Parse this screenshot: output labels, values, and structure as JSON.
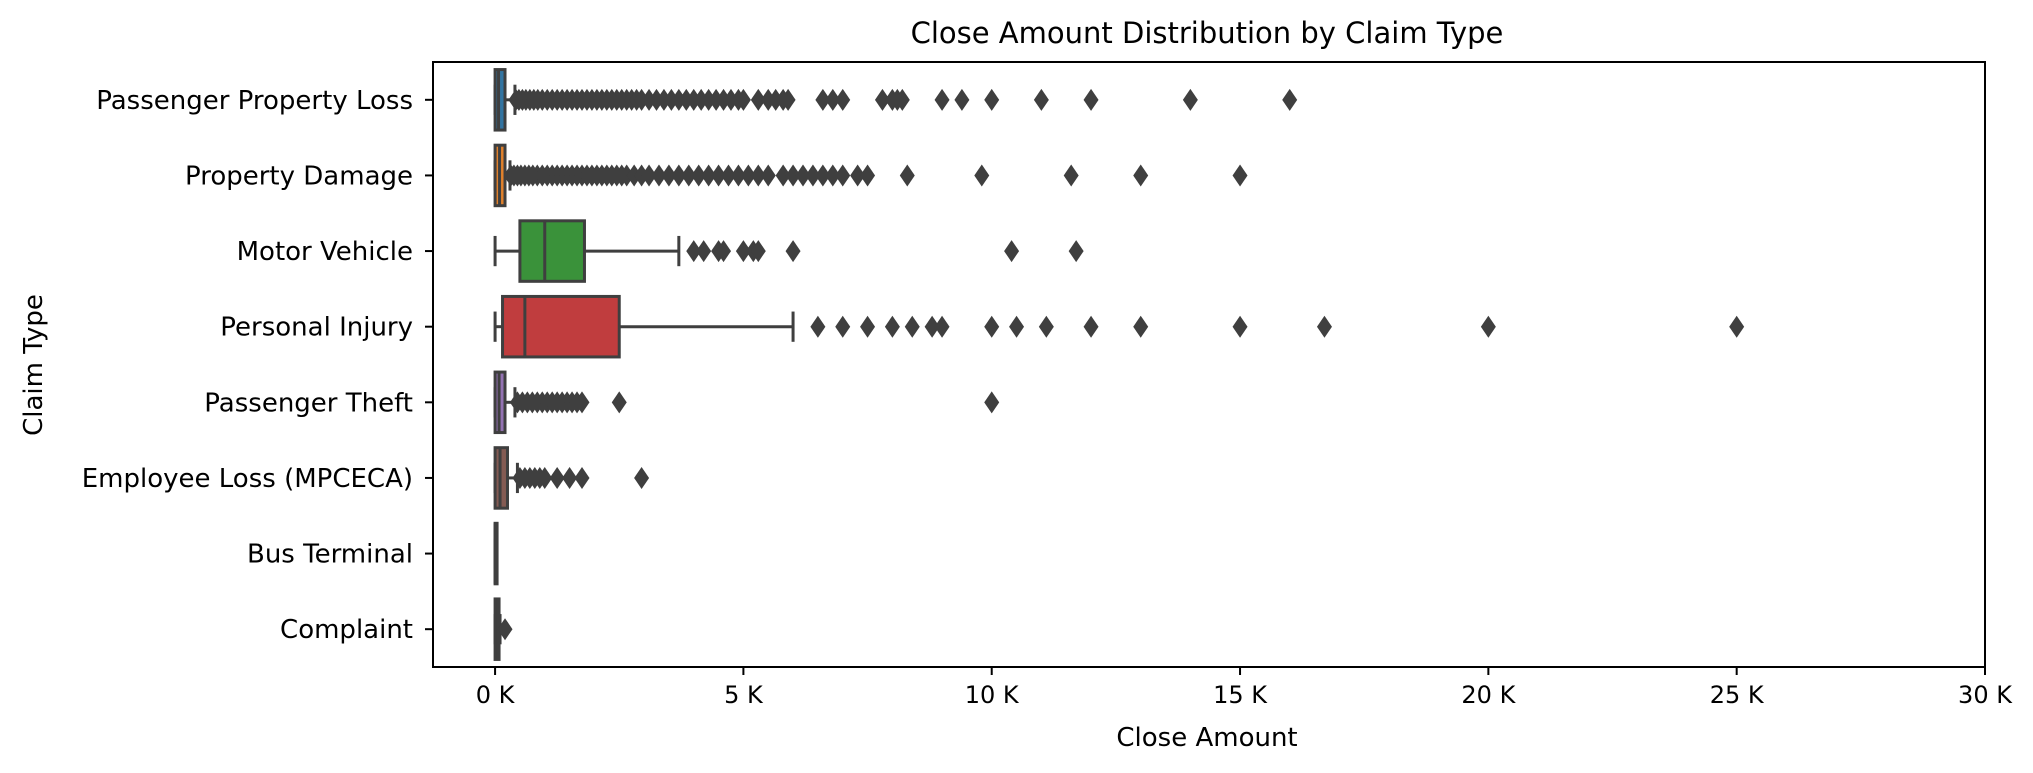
{
  "chart_data": {
    "type": "box",
    "title": "Close Amount Distribution by Claim Type",
    "xlabel": "Close Amount",
    "ylabel": "Claim Type",
    "xlim": [
      -1250,
      30000
    ],
    "xticks": [
      0,
      5000,
      10000,
      15000,
      20000,
      25000,
      30000
    ],
    "xtick_labels": [
      "0 K",
      "5 K",
      "10 K",
      "15 K",
      "20 K",
      "25 K",
      "30 K"
    ],
    "orientation": "horizontal",
    "grid": false,
    "categories": [
      "Passenger Property Loss",
      "Property Damage",
      "Motor Vehicle",
      "Personal Injury",
      "Passenger Theft",
      "Employee Loss (MPCECA)",
      "Bus Terminal",
      "Complaint"
    ],
    "boxes": [
      {
        "category": "Passenger Property Loss",
        "color": "#3274a1",
        "whisker_low": 0,
        "q1": 0,
        "median": 70,
        "q3": 200,
        "whisker_high": 400,
        "outliers": [
          420,
          480,
          550,
          620,
          700,
          780,
          860,
          950,
          1050,
          1150,
          1250,
          1350,
          1450,
          1550,
          1650,
          1750,
          1850,
          1950,
          2050,
          2150,
          2250,
          2350,
          2450,
          2550,
          2650,
          2750,
          2850,
          2950,
          3100,
          3250,
          3400,
          3550,
          3700,
          3850,
          4000,
          4150,
          4300,
          4450,
          4600,
          4750,
          4900,
          5000,
          5300,
          5500,
          5650,
          5800,
          5900,
          6600,
          6800,
          7000,
          7800,
          8000,
          8100,
          8200,
          9000,
          9400,
          10000,
          11000,
          12000,
          14000,
          16000
        ]
      },
      {
        "category": "Property Damage",
        "color": "#e1812c",
        "whisker_low": 0,
        "q1": 0,
        "median": 90,
        "q3": 200,
        "whisker_high": 300,
        "outliers": [
          320,
          380,
          450,
          520,
          600,
          680,
          760,
          850,
          950,
          1050,
          1150,
          1250,
          1350,
          1450,
          1550,
          1650,
          1750,
          1850,
          1950,
          2050,
          2150,
          2250,
          2350,
          2450,
          2550,
          2650,
          2800,
          2950,
          3100,
          3300,
          3500,
          3700,
          3900,
          4100,
          4300,
          4500,
          4700,
          4900,
          5100,
          5300,
          5500,
          5800,
          6000,
          6200,
          6400,
          6600,
          6800,
          7000,
          7300,
          7500,
          8300,
          9800,
          11600,
          13000,
          15000
        ]
      },
      {
        "category": "Motor Vehicle",
        "color": "#3a923a",
        "whisker_low": 0,
        "q1": 500,
        "median": 1000,
        "q3": 1800,
        "whisker_high": 3700,
        "outliers": [
          4000,
          4200,
          4500,
          4600,
          5000,
          5200,
          5300,
          6000,
          10400,
          11700
        ]
      },
      {
        "category": "Personal Injury",
        "color": "#c03d3e",
        "whisker_low": 0,
        "q1": 150,
        "median": 600,
        "q3": 2500,
        "whisker_high": 6000,
        "outliers": [
          6500,
          7000,
          7500,
          8000,
          8400,
          8800,
          9000,
          10000,
          10500,
          11100,
          12000,
          13000,
          15000,
          16700,
          20000,
          25000
        ]
      },
      {
        "category": "Passenger Theft",
        "color": "#9372b2",
        "whisker_low": 0,
        "q1": 0,
        "median": 80,
        "q3": 200,
        "whisker_high": 400,
        "outliers": [
          450,
          550,
          650,
          750,
          850,
          950,
          1050,
          1150,
          1250,
          1350,
          1450,
          1550,
          1650,
          1750,
          2500,
          10000
        ]
      },
      {
        "category": "Employee Loss (MPCECA)",
        "color": "#845b53",
        "whisker_low": 0,
        "q1": 0,
        "median": 100,
        "q3": 250,
        "whisker_high": 450,
        "outliers": [
          500,
          600,
          700,
          800,
          900,
          1000,
          1250,
          1500,
          1750,
          2950
        ]
      },
      {
        "category": "Bus Terminal",
        "color": "#d684bd",
        "whisker_low": 0,
        "q1": 0,
        "median": 0,
        "q3": 0,
        "whisker_high": 0,
        "outliers": []
      },
      {
        "category": "Complaint",
        "color": "#7f7f7f",
        "whisker_low": 0,
        "q1": 0,
        "median": 50,
        "q3": 80,
        "whisker_high": 100,
        "outliers": [
          200
        ]
      }
    ]
  }
}
